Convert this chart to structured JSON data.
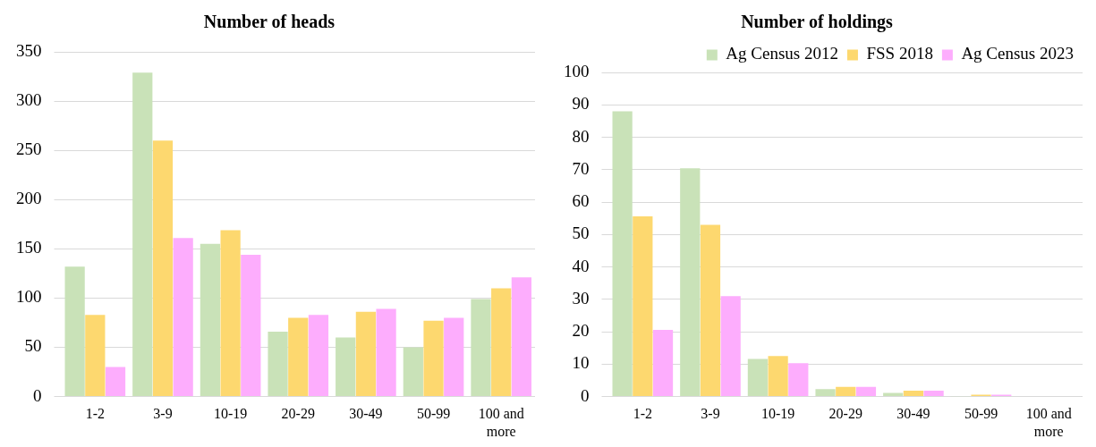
{
  "chart_data": [
    {
      "type": "bar",
      "title": "Number of heads",
      "categories": [
        "1-2",
        "3-9",
        "10-19",
        "20-29",
        "30-49",
        "50-99",
        "100 and more"
      ],
      "series": [
        {
          "color": "#c9e2b8",
          "values": [
            132,
            329,
            155,
            66,
            60,
            50,
            99
          ]
        },
        {
          "color": "#fdd86f",
          "values": [
            83,
            260,
            169,
            80,
            86,
            77,
            110
          ]
        },
        {
          "color": "#fdadfd",
          "values": [
            30,
            161,
            144,
            83,
            89,
            80,
            121
          ]
        }
      ],
      "ylim": [
        0,
        350
      ],
      "yticks": [
        0,
        50,
        100,
        150,
        200,
        250,
        300,
        350
      ],
      "grid": "y",
      "legend": false
    },
    {
      "type": "bar",
      "title": "Number of holdings",
      "categories": [
        "1-2",
        "3-9",
        "10-19",
        "20-29",
        "30-49",
        "50-99",
        "100 and more"
      ],
      "series": [
        {
          "name": "Ag Census 2012",
          "color": "#c9e2b8",
          "values": [
            88,
            70.4,
            11.6,
            2.3,
            1.1,
            0.1,
            0
          ]
        },
        {
          "name": "FSS 2018",
          "color": "#fdd86f",
          "values": [
            55.6,
            53,
            12.5,
            3,
            1.8,
            0.6,
            0
          ]
        },
        {
          "name": "Ag Census 2023",
          "color": "#fdadfd",
          "values": [
            20.6,
            31,
            10.3,
            3,
            1.8,
            0.6,
            0
          ]
        }
      ],
      "ylim": [
        0,
        100
      ],
      "yticks": [
        0,
        10,
        20,
        30,
        40,
        50,
        60,
        70,
        80,
        90,
        100
      ],
      "grid": "y",
      "legend": "top right"
    }
  ]
}
